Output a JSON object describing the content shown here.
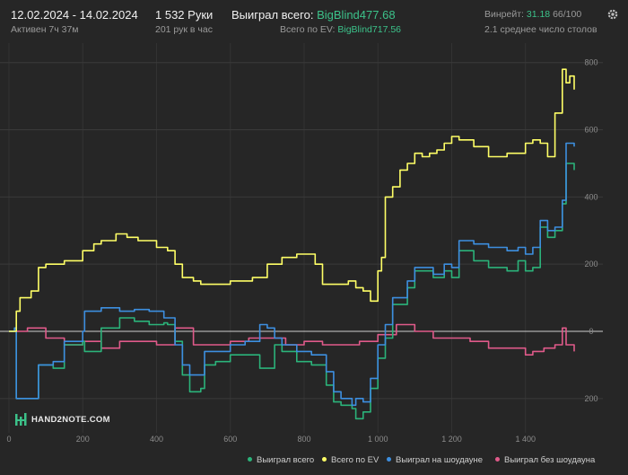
{
  "header": {
    "dates": "12.02.2024 - 14.02.2024",
    "active": "Активен 7ч 37м",
    "hands": "1 532 Руки",
    "hands_rate": "201 рук в час",
    "won_label": "Выиграл всего:",
    "won_value": "BigBlind477.68",
    "ev_label": "Всего по EV:",
    "ev_value": "BigBlind717.56",
    "winrate_label": "Винрейт:",
    "winrate_value": "31.18",
    "winrate_suffix": "66/100",
    "tables": "2.1 среднее число столов"
  },
  "logo": {
    "text": "HAND2NOTE.COM"
  },
  "colors": {
    "background": "#262626",
    "accent": "#3cc28a",
    "won": "#2bb37a",
    "ev": "#ffff66",
    "showdown": "#3d8fe0",
    "nonshowdown": "#e05a8a"
  },
  "icons": {
    "settings": "gear-icon"
  },
  "chart_data": {
    "type": "line",
    "xlim": [
      0,
      1532
    ],
    "ylim": [
      -270,
      810
    ],
    "x_ticks": [
      0,
      200,
      400,
      600,
      800,
      1000,
      1200,
      1400
    ],
    "x_tick_labels": [
      "0",
      "200",
      "400",
      "600",
      "800",
      "1 000",
      "1 200",
      "1 400"
    ],
    "y_ticks": [
      -200,
      0,
      200,
      400,
      600,
      800
    ],
    "y_tick_labels": [
      "200",
      "0",
      "200",
      "400",
      "600",
      "800"
    ],
    "grid": true,
    "legend_position": "bottom-right",
    "series": [
      {
        "name": "Выиграл всего",
        "color": "#2bb37a",
        "points": [
          [
            0,
            0
          ],
          [
            15,
            10
          ],
          [
            20,
            -200
          ],
          [
            70,
            -200
          ],
          [
            80,
            -100
          ],
          [
            120,
            -110
          ],
          [
            150,
            -40
          ],
          [
            200,
            -30
          ],
          [
            205,
            -60
          ],
          [
            250,
            10
          ],
          [
            300,
            40
          ],
          [
            340,
            30
          ],
          [
            380,
            20
          ],
          [
            420,
            25
          ],
          [
            430,
            20
          ],
          [
            450,
            -30
          ],
          [
            470,
            -130
          ],
          [
            490,
            -180
          ],
          [
            520,
            -170
          ],
          [
            530,
            -100
          ],
          [
            560,
            -90
          ],
          [
            600,
            -70
          ],
          [
            640,
            -70
          ],
          [
            680,
            -110
          ],
          [
            700,
            -110
          ],
          [
            720,
            -40
          ],
          [
            740,
            -60
          ],
          [
            780,
            -90
          ],
          [
            820,
            -100
          ],
          [
            860,
            -160
          ],
          [
            880,
            -210
          ],
          [
            900,
            -220
          ],
          [
            930,
            -230
          ],
          [
            940,
            -260
          ],
          [
            960,
            -240
          ],
          [
            980,
            -170
          ],
          [
            1000,
            -80
          ],
          [
            1020,
            -20
          ],
          [
            1040,
            80
          ],
          [
            1080,
            130
          ],
          [
            1100,
            180
          ],
          [
            1150,
            160
          ],
          [
            1180,
            180
          ],
          [
            1200,
            160
          ],
          [
            1220,
            240
          ],
          [
            1260,
            210
          ],
          [
            1300,
            190
          ],
          [
            1350,
            180
          ],
          [
            1380,
            210
          ],
          [
            1400,
            180
          ],
          [
            1420,
            190
          ],
          [
            1440,
            310
          ],
          [
            1460,
            280
          ],
          [
            1480,
            300
          ],
          [
            1500,
            380
          ],
          [
            1510,
            500
          ],
          [
            1532,
            480
          ]
        ]
      },
      {
        "name": "Всего по EV",
        "color": "#ffff66",
        "points": [
          [
            0,
            0
          ],
          [
            20,
            60
          ],
          [
            30,
            100
          ],
          [
            60,
            120
          ],
          [
            80,
            190
          ],
          [
            100,
            200
          ],
          [
            150,
            210
          ],
          [
            200,
            240
          ],
          [
            230,
            260
          ],
          [
            250,
            270
          ],
          [
            290,
            290
          ],
          [
            320,
            280
          ],
          [
            350,
            270
          ],
          [
            400,
            250
          ],
          [
            430,
            240
          ],
          [
            450,
            200
          ],
          [
            470,
            160
          ],
          [
            500,
            150
          ],
          [
            520,
            140
          ],
          [
            540,
            140
          ],
          [
            580,
            140
          ],
          [
            600,
            150
          ],
          [
            640,
            150
          ],
          [
            660,
            160
          ],
          [
            700,
            200
          ],
          [
            740,
            220
          ],
          [
            780,
            230
          ],
          [
            800,
            230
          ],
          [
            830,
            200
          ],
          [
            850,
            140
          ],
          [
            880,
            140
          ],
          [
            900,
            140
          ],
          [
            920,
            150
          ],
          [
            940,
            130
          ],
          [
            960,
            120
          ],
          [
            980,
            90
          ],
          [
            1000,
            180
          ],
          [
            1010,
            220
          ],
          [
            1020,
            400
          ],
          [
            1040,
            430
          ],
          [
            1060,
            480
          ],
          [
            1080,
            500
          ],
          [
            1100,
            530
          ],
          [
            1120,
            520
          ],
          [
            1140,
            530
          ],
          [
            1160,
            540
          ],
          [
            1180,
            560
          ],
          [
            1200,
            580
          ],
          [
            1220,
            570
          ],
          [
            1260,
            550
          ],
          [
            1300,
            520
          ],
          [
            1350,
            530
          ],
          [
            1380,
            530
          ],
          [
            1400,
            560
          ],
          [
            1420,
            570
          ],
          [
            1440,
            560
          ],
          [
            1460,
            520
          ],
          [
            1480,
            650
          ],
          [
            1500,
            780
          ],
          [
            1510,
            740
          ],
          [
            1520,
            760
          ],
          [
            1532,
            720
          ]
        ]
      },
      {
        "name": "Выиграл на шоудауне",
        "color": "#3d8fe0",
        "points": [
          [
            0,
            0
          ],
          [
            15,
            10
          ],
          [
            20,
            -200
          ],
          [
            70,
            -200
          ],
          [
            80,
            -100
          ],
          [
            120,
            -90
          ],
          [
            150,
            -30
          ],
          [
            200,
            0
          ],
          [
            205,
            60
          ],
          [
            250,
            70
          ],
          [
            300,
            60
          ],
          [
            340,
            65
          ],
          [
            380,
            60
          ],
          [
            420,
            40
          ],
          [
            430,
            40
          ],
          [
            450,
            -40
          ],
          [
            470,
            -100
          ],
          [
            490,
            -130
          ],
          [
            520,
            -130
          ],
          [
            530,
            -60
          ],
          [
            560,
            -60
          ],
          [
            600,
            -40
          ],
          [
            640,
            -30
          ],
          [
            680,
            20
          ],
          [
            700,
            10
          ],
          [
            720,
            -20
          ],
          [
            740,
            -40
          ],
          [
            780,
            -60
          ],
          [
            820,
            -70
          ],
          [
            860,
            -120
          ],
          [
            880,
            -180
          ],
          [
            900,
            -200
          ],
          [
            930,
            -220
          ],
          [
            940,
            -200
          ],
          [
            960,
            -210
          ],
          [
            980,
            -140
          ],
          [
            1000,
            -40
          ],
          [
            1020,
            20
          ],
          [
            1040,
            100
          ],
          [
            1080,
            150
          ],
          [
            1100,
            190
          ],
          [
            1150,
            170
          ],
          [
            1180,
            200
          ],
          [
            1200,
            190
          ],
          [
            1220,
            270
          ],
          [
            1260,
            260
          ],
          [
            1300,
            250
          ],
          [
            1350,
            240
          ],
          [
            1380,
            250
          ],
          [
            1400,
            230
          ],
          [
            1420,
            250
          ],
          [
            1440,
            330
          ],
          [
            1460,
            300
          ],
          [
            1480,
            310
          ],
          [
            1500,
            390
          ],
          [
            1510,
            560
          ],
          [
            1532,
            550
          ]
        ]
      },
      {
        "name": "Выиграл без шоудауна",
        "color": "#e05a8a",
        "points": [
          [
            0,
            0
          ],
          [
            50,
            10
          ],
          [
            100,
            -20
          ],
          [
            150,
            -40
          ],
          [
            200,
            -30
          ],
          [
            250,
            -50
          ],
          [
            300,
            -30
          ],
          [
            350,
            -30
          ],
          [
            400,
            -40
          ],
          [
            450,
            10
          ],
          [
            500,
            -40
          ],
          [
            550,
            -40
          ],
          [
            600,
            -30
          ],
          [
            650,
            -20
          ],
          [
            700,
            -20
          ],
          [
            750,
            -40
          ],
          [
            800,
            -30
          ],
          [
            850,
            -40
          ],
          [
            900,
            -40
          ],
          [
            950,
            -30
          ],
          [
            1000,
            -10
          ],
          [
            1050,
            20
          ],
          [
            1100,
            0
          ],
          [
            1150,
            -20
          ],
          [
            1200,
            -20
          ],
          [
            1250,
            -30
          ],
          [
            1300,
            -50
          ],
          [
            1350,
            -50
          ],
          [
            1400,
            -70
          ],
          [
            1420,
            -60
          ],
          [
            1450,
            -50
          ],
          [
            1480,
            -40
          ],
          [
            1500,
            10
          ],
          [
            1510,
            -40
          ],
          [
            1532,
            -60
          ]
        ]
      }
    ]
  }
}
